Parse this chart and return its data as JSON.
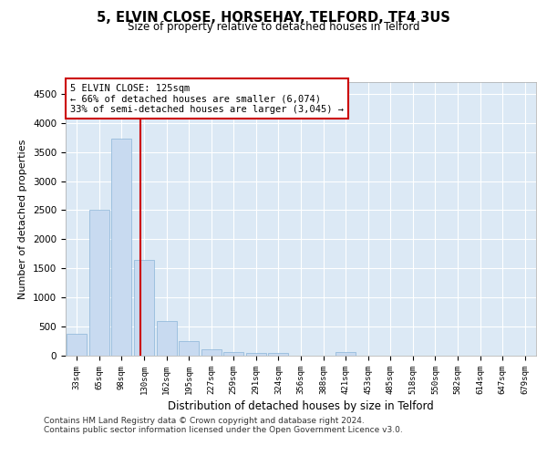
{
  "title": "5, ELVIN CLOSE, HORSEHAY, TELFORD, TF4 3US",
  "subtitle": "Size of property relative to detached houses in Telford",
  "xlabel": "Distribution of detached houses by size in Telford",
  "ylabel": "Number of detached properties",
  "categories": [
    "33sqm",
    "65sqm",
    "98sqm",
    "130sqm",
    "162sqm",
    "195sqm",
    "227sqm",
    "259sqm",
    "291sqm",
    "324sqm",
    "356sqm",
    "388sqm",
    "421sqm",
    "453sqm",
    "485sqm",
    "518sqm",
    "550sqm",
    "582sqm",
    "614sqm",
    "647sqm",
    "679sqm"
  ],
  "values": [
    380,
    2510,
    3730,
    1640,
    600,
    245,
    110,
    60,
    45,
    40,
    0,
    0,
    65,
    0,
    0,
    0,
    0,
    0,
    0,
    0,
    0
  ],
  "bar_color": "#c8daf0",
  "bar_edgecolor": "#8ab4d8",
  "marker_line_color": "#cc0000",
  "annotation_line1": "5 ELVIN CLOSE: 125sqm",
  "annotation_line2": "← 66% of detached houses are smaller (6,074)",
  "annotation_line3": "33% of semi-detached houses are larger (3,045) →",
  "ylim": [
    0,
    4700
  ],
  "yticks": [
    0,
    500,
    1000,
    1500,
    2000,
    2500,
    3000,
    3500,
    4000,
    4500
  ],
  "bg_color": "#dce9f5",
  "footer_line1": "Contains HM Land Registry data © Crown copyright and database right 2024.",
  "footer_line2": "Contains public sector information licensed under the Open Government Licence v3.0."
}
